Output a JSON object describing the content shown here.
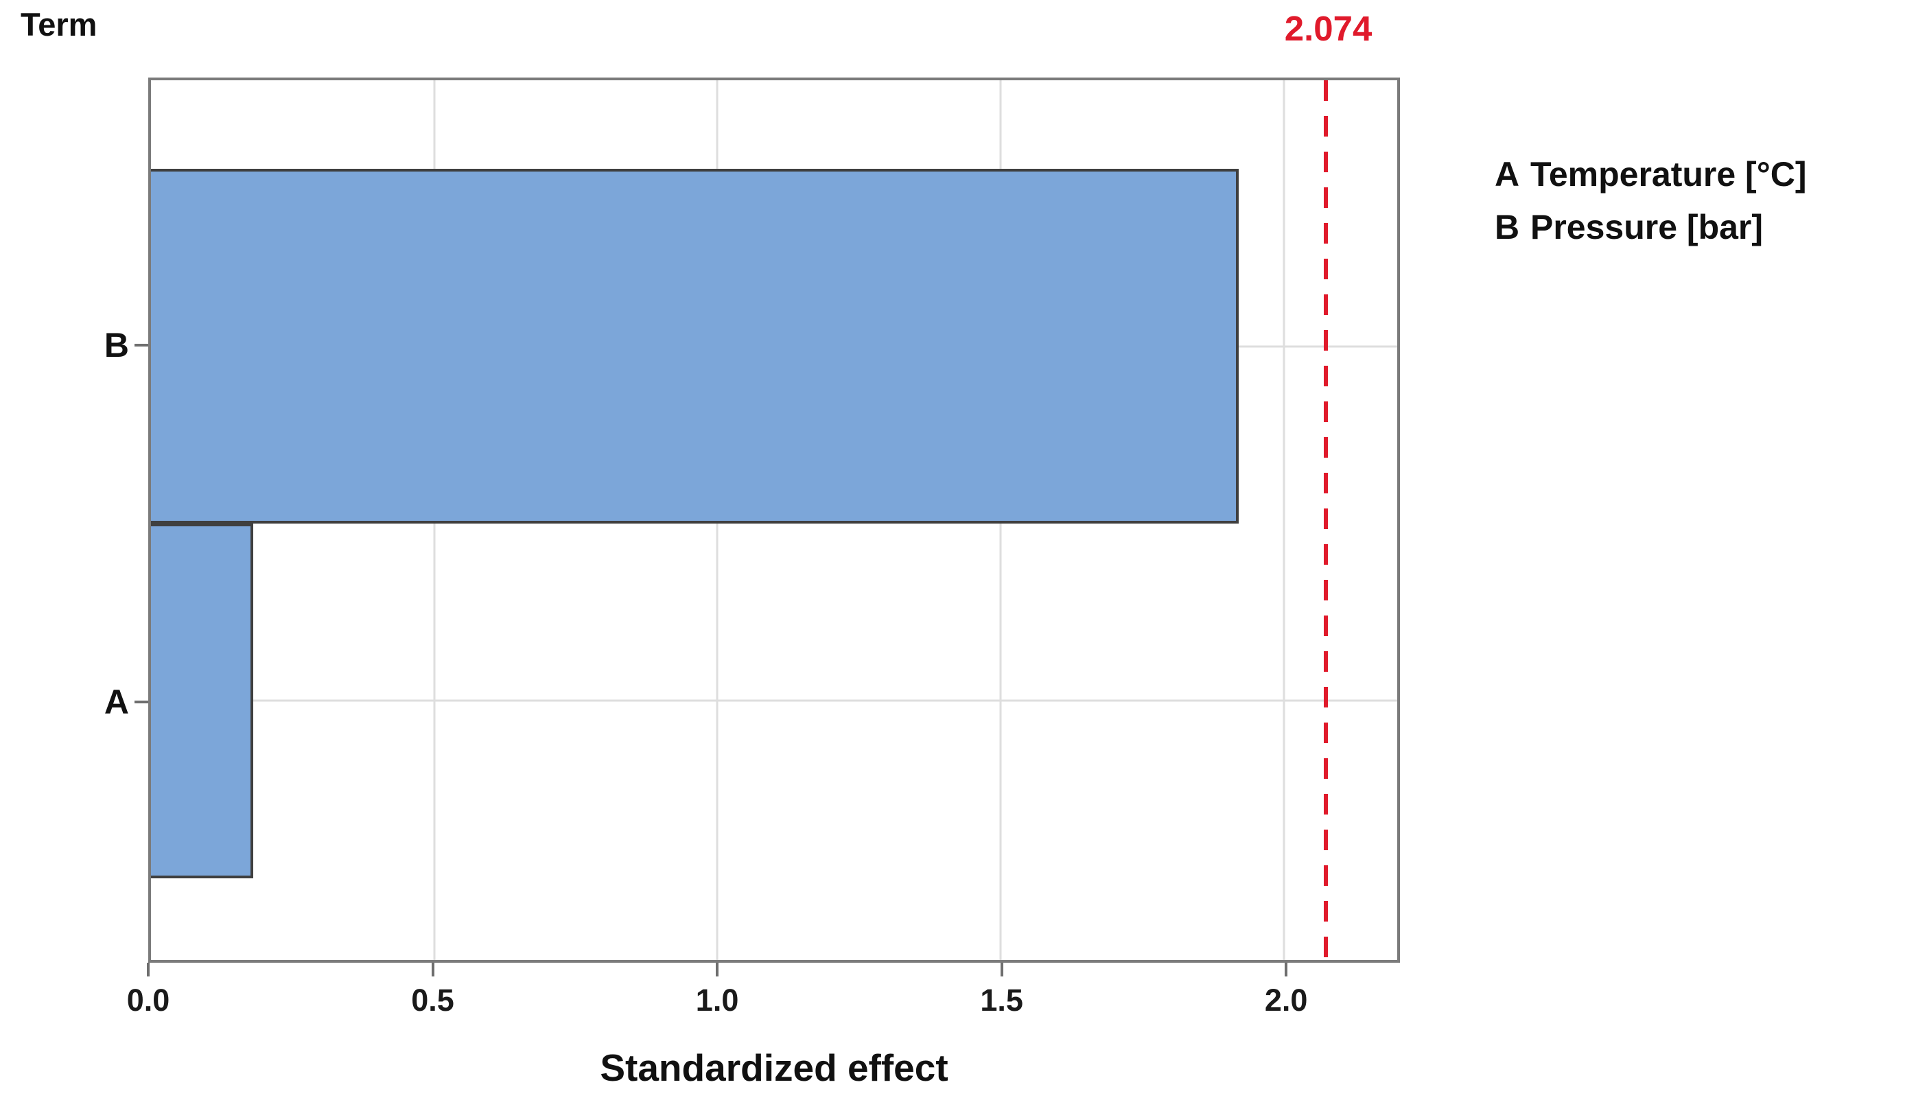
{
  "title": "Term",
  "reference_label": "2.074",
  "axis_title": "Standardized effect",
  "legend": {
    "items": [
      {
        "letter": "A",
        "name": "Temperature [°C]"
      },
      {
        "letter": "B",
        "name": "Pressure [bar]"
      }
    ]
  },
  "colors": {
    "bar_fill": "#7CA6D9",
    "bar_border": "#3f3f3f",
    "plot_border": "#7b7b7b",
    "gridline": "#dedede",
    "reference_red": "#e01a2b",
    "tick": "#6e6e6e"
  },
  "chart_data": {
    "type": "bar",
    "orientation": "horizontal",
    "title": "Term",
    "xlabel": "Standardized effect",
    "ylabel": "Term",
    "categories": [
      "B",
      "A"
    ],
    "values": [
      1.92,
      0.18
    ],
    "xlim": [
      0,
      2.2
    ],
    "xticks": [
      0,
      0.5,
      1.0,
      1.5,
      2.0
    ],
    "xtick_labels": [
      "0.0",
      "0.5",
      "1.0",
      "1.5",
      "2.0"
    ],
    "grid": true,
    "bar_color": "#7CA6D9",
    "reference_line": {
      "value": 2.074,
      "label": "2.074",
      "style": "dashed",
      "color": "#e01a2b"
    },
    "legend_entries": [
      "A Temperature [°C]",
      "B Pressure [bar]"
    ],
    "legend_position": "right"
  }
}
